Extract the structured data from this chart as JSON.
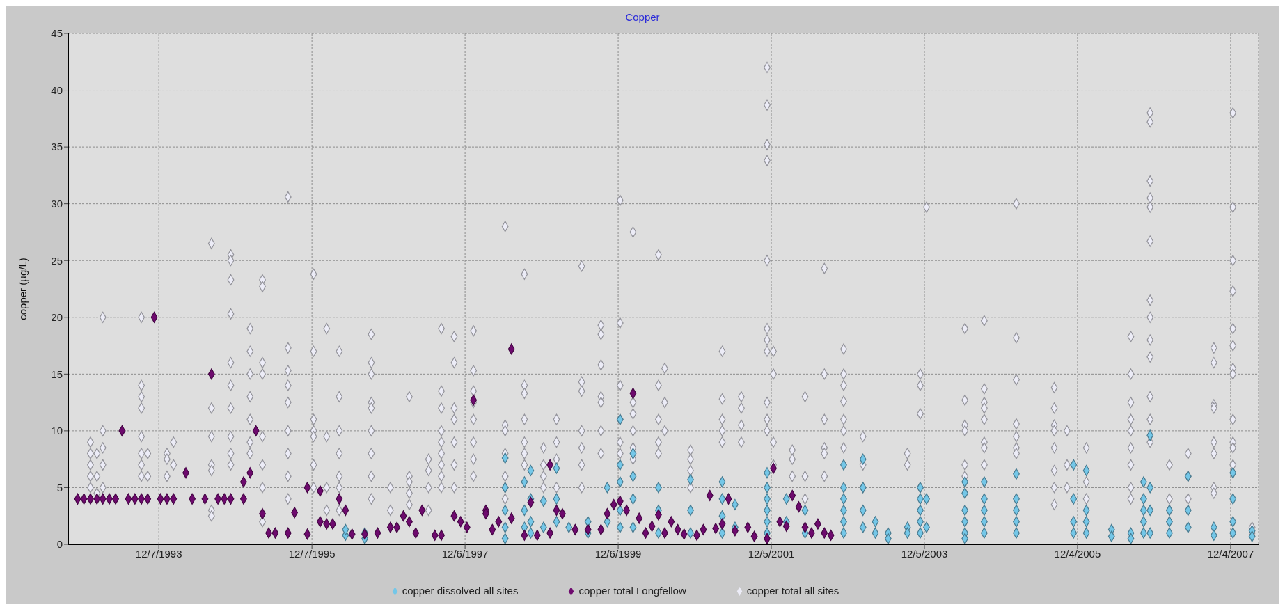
{
  "chart_data": {
    "type": "scatter",
    "title": "Copper",
    "ylabel": "copper (µg/L)",
    "marker": "diamond",
    "grid": true,
    "legend": "bottom",
    "xlim": [
      "1992-10-01",
      "2008-04-15"
    ],
    "xticks": [
      {
        "value": "1993-12-07",
        "label": "12/7/1993"
      },
      {
        "value": "1995-12-07",
        "label": "12/7/1995"
      },
      {
        "value": "1997-12-06",
        "label": "12/6/1997"
      },
      {
        "value": "1999-12-06",
        "label": "12/6/1999"
      },
      {
        "value": "2001-12-05",
        "label": "12/5/2001"
      },
      {
        "value": "2003-12-05",
        "label": "12/5/2003"
      },
      {
        "value": "2005-12-04",
        "label": "12/4/2005"
      },
      {
        "value": "2007-12-04",
        "label": "12/4/2007"
      }
    ],
    "ylim": [
      0,
      45
    ],
    "yticks": [
      0,
      5,
      10,
      15,
      20,
      25,
      30,
      35,
      40,
      45
    ],
    "series": [
      {
        "name": "copper total all sites",
        "color": "#ececf7",
        "x": [
          "1993-01",
          "1993-01",
          "1993-01",
          "1993-01",
          "1993-01",
          "1993-02",
          "1993-02",
          "1993-02",
          "1993-03",
          "1993-03",
          "1993-03",
          "1993-03",
          "1993-03",
          "1993-09",
          "1993-09",
          "1993-09",
          "1993-09",
          "1993-09",
          "1993-09",
          "1993-09",
          "1993-09",
          "1993-10",
          "1993-10",
          "1994-01",
          "1994-01",
          "1994-01",
          "1994-02",
          "1994-02",
          "1994-08",
          "1994-08",
          "1994-08",
          "1994-08",
          "1994-08",
          "1994-08",
          "1994-08",
          "1994-11",
          "1994-11",
          "1994-11",
          "1994-11",
          "1994-11",
          "1994-11",
          "1994-11",
          "1994-11",
          "1994-11",
          "1994-11",
          "1995-02",
          "1995-02",
          "1995-02",
          "1995-02",
          "1995-02",
          "1995-02",
          "1995-02",
          "1995-04",
          "1995-04",
          "1995-04",
          "1995-04",
          "1995-04",
          "1995-04",
          "1995-04",
          "1995-04",
          "1995-08",
          "1995-08",
          "1995-08",
          "1995-08",
          "1995-08",
          "1995-08",
          "1995-08",
          "1995-08",
          "1995-08",
          "1995-12",
          "1995-12",
          "1995-12",
          "1995-12",
          "1995-12",
          "1995-12",
          "1995-12",
          "1996-02",
          "1996-02",
          "1996-02",
          "1996-02",
          "1996-04",
          "1996-04",
          "1996-04",
          "1996-04",
          "1996-04",
          "1996-04",
          "1996-04",
          "1996-09",
          "1996-09",
          "1996-09",
          "1996-09",
          "1996-09",
          "1996-09",
          "1996-09",
          "1996-09",
          "1996-09",
          "1996-12",
          "1996-12",
          "1997-03",
          "1997-03",
          "1997-03",
          "1997-03",
          "1997-03",
          "1997-06",
          "1997-06",
          "1997-06",
          "1997-06",
          "1997-08",
          "1997-08",
          "1997-08",
          "1997-08",
          "1997-08",
          "1997-08",
          "1997-08",
          "1997-08",
          "1997-08",
          "1997-10",
          "1997-10",
          "1997-10",
          "1997-10",
          "1997-10",
          "1997-10",
          "1997-10",
          "1998-01",
          "1998-01",
          "1998-01",
          "1998-01",
          "1998-01",
          "1998-01",
          "1998-01",
          "1998-01",
          "1998-06",
          "1998-06",
          "1998-06",
          "1998-06",
          "1998-06",
          "1998-06",
          "1998-06",
          "1998-09",
          "1998-09",
          "1998-09",
          "1998-09",
          "1998-09",
          "1998-09",
          "1998-09",
          "1998-12",
          "1998-12",
          "1998-12",
          "1998-12",
          "1999-02",
          "1999-02",
          "1999-02",
          "1999-02",
          "1999-06",
          "1999-06",
          "1999-06",
          "1999-06",
          "1999-06",
          "1999-06",
          "1999-06",
          "1999-09",
          "1999-09",
          "1999-09",
          "1999-09",
          "1999-09",
          "1999-09",
          "1999-09",
          "1999-12",
          "1999-12",
          "1999-12",
          "1999-12",
          "1999-12",
          "1999-12",
          "2000-02",
          "2000-02",
          "2000-02",
          "2000-02",
          "2000-02",
          "2000-02",
          "2000-06",
          "2000-06",
          "2000-06",
          "2000-06",
          "2000-06",
          "2000-07",
          "2000-07",
          "2000-07",
          "2000-11",
          "2000-11",
          "2000-11",
          "2000-11",
          "2001-04",
          "2001-04",
          "2001-04",
          "2001-04",
          "2001-04",
          "2001-07",
          "2001-07",
          "2001-07",
          "2001-07",
          "2001-11",
          "2001-11",
          "2001-11",
          "2001-11",
          "2001-11",
          "2001-11",
          "2001-11",
          "2001-11",
          "2001-11",
          "2001-11",
          "2001-11",
          "2001-12",
          "2001-12",
          "2001-12",
          "2001-12",
          "2002-03",
          "2002-03",
          "2002-03",
          "2002-05",
          "2002-05",
          "2002-05",
          "2002-08",
          "2002-08",
          "2002-08",
          "2002-08",
          "2002-08",
          "2002-08",
          "2002-11",
          "2002-11",
          "2002-11",
          "2002-11",
          "2002-11",
          "2002-11",
          "2002-11",
          "2003-02",
          "2003-02",
          "2003-02",
          "2003-09",
          "2003-09",
          "2003-11",
          "2003-11",
          "2003-11",
          "2003-11",
          "2003-12",
          "2004-06",
          "2004-06",
          "2004-06",
          "2004-06",
          "2004-06",
          "2004-06",
          "2004-09",
          "2004-09",
          "2004-09",
          "2004-09",
          "2004-09",
          "2004-09",
          "2004-09",
          "2004-09",
          "2005-02",
          "2005-02",
          "2005-02",
          "2005-02",
          "2005-02",
          "2005-02",
          "2005-02",
          "2005-08",
          "2005-08",
          "2005-08",
          "2005-08",
          "2005-08",
          "2005-08",
          "2005-08",
          "2005-08",
          "2005-10",
          "2005-10",
          "2005-10",
          "2006-01",
          "2006-01",
          "2006-01",
          "2006-08",
          "2006-08",
          "2006-08",
          "2006-08",
          "2006-08",
          "2006-08",
          "2006-08",
          "2006-08",
          "2006-08",
          "2006-11",
          "2006-11",
          "2006-11",
          "2006-11",
          "2006-11",
          "2006-11",
          "2006-11",
          "2006-11",
          "2006-11",
          "2006-11",
          "2006-11",
          "2006-11",
          "2006-11",
          "2007-02",
          "2007-02",
          "2007-02",
          "2007-05",
          "2007-05",
          "2007-05",
          "2007-09",
          "2007-09",
          "2007-09",
          "2007-09",
          "2007-09",
          "2007-09",
          "2007-09",
          "2007-09",
          "2007-12",
          "2007-12",
          "2007-12",
          "2007-12",
          "2007-12",
          "2007-12",
          "2007-12",
          "2007-12",
          "2007-12",
          "2007-12",
          "2007-12",
          "2007-12",
          "2008-03",
          "2008-03"
        ],
        "values": [
          9,
          8,
          7,
          6,
          5,
          8,
          6,
          4.5,
          20,
          10,
          8.5,
          7,
          5,
          20,
          14,
          13,
          12,
          9.5,
          8,
          7,
          6,
          8,
          6,
          8,
          7.5,
          6,
          9,
          7,
          26.5,
          12,
          9.5,
          7,
          6.5,
          3,
          2.5,
          25.5,
          25,
          23.3,
          20.3,
          16,
          14,
          12,
          9.5,
          8,
          7,
          19,
          17,
          15,
          13,
          11,
          9,
          8,
          23.3,
          22.7,
          16,
          15,
          9.5,
          7,
          5,
          2,
          30.6,
          17.3,
          15.3,
          14,
          12.5,
          10,
          8,
          6,
          4,
          23.8,
          17,
          11,
          10,
          9.5,
          7,
          5,
          19,
          9.5,
          5,
          3,
          17,
          13,
          10,
          8,
          6,
          5,
          3,
          18.5,
          16,
          15,
          12.5,
          12,
          10,
          8,
          6,
          4,
          5,
          3,
          13,
          6,
          5.5,
          4.5,
          3.5,
          7.5,
          6.5,
          5,
          3,
          19,
          13.5,
          12,
          10,
          9,
          8,
          7,
          6,
          5,
          18.3,
          16,
          12,
          11,
          9,
          7,
          5,
          18.8,
          15.3,
          13.5,
          12.5,
          11,
          9,
          7.5,
          6,
          28,
          10.5,
          10,
          8,
          6,
          5,
          4,
          23.8,
          14,
          13.3,
          11,
          9,
          8,
          7,
          8.5,
          7,
          6,
          5,
          11,
          9,
          7.5,
          5,
          24.5,
          14.3,
          13.5,
          10,
          8.5,
          7,
          5,
          19.3,
          18.5,
          15.8,
          13,
          12.5,
          10,
          8,
          30.3,
          19.5,
          14,
          11,
          9,
          8,
          27.5,
          12.5,
          11.5,
          10,
          8.5,
          7.5,
          25.5,
          14,
          11,
          9,
          8,
          15.5,
          12.5,
          10,
          8.3,
          7.5,
          6.5,
          5,
          17,
          12.8,
          11,
          10,
          9,
          13,
          12,
          10.5,
          9,
          42,
          38.7,
          35.2,
          33.8,
          25,
          19,
          18,
          17,
          12.5,
          11,
          10,
          17,
          15,
          9,
          7,
          8.3,
          7.5,
          6,
          13,
          6,
          4,
          24.3,
          15,
          11,
          8.5,
          8,
          6,
          17.2,
          15,
          14,
          12.6,
          11,
          10,
          8.5,
          9.5,
          7,
          5,
          8,
          7,
          15,
          14,
          11.5,
          5,
          29.7,
          19,
          12.7,
          10.5,
          10,
          7,
          6,
          19.7,
          13.7,
          12.5,
          12,
          11,
          9,
          8.5,
          7,
          30,
          18.2,
          14.5,
          10.6,
          9.5,
          8.5,
          8,
          13.8,
          12,
          10.5,
          10,
          8.5,
          6.5,
          5,
          3.5,
          10,
          7,
          5,
          8.5,
          5.5,
          4,
          18.3,
          15,
          12.5,
          11,
          10,
          8.5,
          7,
          5,
          4,
          38,
          37.2,
          32,
          30.5,
          29.7,
          26.7,
          21.5,
          20,
          18,
          16.5,
          13,
          11,
          9,
          7,
          4,
          3,
          8,
          6,
          4,
          17.3,
          16,
          12.3,
          12,
          9,
          8,
          5,
          4.5,
          38,
          29.7,
          25,
          22.3,
          19,
          17.5,
          15.5,
          15,
          11,
          9,
          8.5,
          7,
          1.5,
          1
        ]
      },
      {
        "name": "copper dissolved all sites",
        "color": "#74c7e8",
        "x": [
          "1996-05",
          "1996-05",
          "1996-08",
          "1996-08",
          "1998-06",
          "1998-06",
          "1998-06",
          "1998-06",
          "1998-06",
          "1998-09",
          "1998-09",
          "1998-09",
          "1998-10",
          "1998-10",
          "1998-10",
          "1998-10",
          "1998-12",
          "1998-12",
          "1999-02",
          "1999-02",
          "1999-02",
          "1999-04",
          "1999-07",
          "1999-07",
          "1999-10",
          "1999-10",
          "1999-12",
          "1999-12",
          "1999-12",
          "1999-12",
          "1999-12",
          "2000-02",
          "2000-02",
          "2000-02",
          "2000-02",
          "2000-06",
          "2000-06",
          "2000-06",
          "2000-11",
          "2000-11",
          "2000-11",
          "2001-04",
          "2001-04",
          "2001-04",
          "2001-04",
          "2001-06",
          "2001-06",
          "2001-11",
          "2001-11",
          "2001-11",
          "2001-11",
          "2001-11",
          "2001-11",
          "2002-02",
          "2002-02",
          "2002-05",
          "2002-05",
          "2002-11",
          "2002-11",
          "2002-11",
          "2002-11",
          "2002-11",
          "2002-11",
          "2003-02",
          "2003-02",
          "2003-02",
          "2003-02",
          "2003-04",
          "2003-04",
          "2003-06",
          "2003-06",
          "2003-09",
          "2003-09",
          "2003-11",
          "2003-11",
          "2003-11",
          "2003-11",
          "2003-11",
          "2003-12",
          "2003-12",
          "2004-06",
          "2004-06",
          "2004-06",
          "2004-06",
          "2004-06",
          "2004-06",
          "2004-09",
          "2004-09",
          "2004-09",
          "2004-09",
          "2004-09",
          "2005-02",
          "2005-02",
          "2005-02",
          "2005-02",
          "2005-02",
          "2005-11",
          "2005-11",
          "2005-11",
          "2005-11",
          "2006-01",
          "2006-01",
          "2006-01",
          "2006-01",
          "2006-05",
          "2006-05",
          "2006-08",
          "2006-08",
          "2006-10",
          "2006-10",
          "2006-10",
          "2006-10",
          "2006-10",
          "2006-11",
          "2006-11",
          "2006-11",
          "2006-11",
          "2007-02",
          "2007-02",
          "2007-02",
          "2007-05",
          "2007-05",
          "2007-05",
          "2007-09",
          "2007-09",
          "2007-12",
          "2007-12",
          "2007-12",
          "2007-12",
          "2008-03",
          "2008-03"
        ],
        "values": [
          0.8,
          1.3,
          0.5,
          1,
          7.6,
          5,
          3,
          1.5,
          0.5,
          5.5,
          3,
          1.5,
          6.5,
          4,
          2,
          1,
          3.8,
          1.5,
          6.7,
          4,
          2,
          1.5,
          2,
          1,
          5,
          2,
          11,
          7,
          5.5,
          3,
          1.5,
          8,
          6,
          4,
          1.5,
          5,
          3,
          1,
          5.7,
          3,
          1,
          5.5,
          4,
          2.5,
          1,
          3.5,
          1.5,
          6.3,
          5,
          4,
          3,
          2,
          1,
          4,
          2,
          3,
          1,
          7,
          5,
          4,
          3,
          2,
          1,
          7.5,
          5,
          3,
          1.5,
          2,
          1,
          1,
          0.5,
          1.5,
          1,
          5,
          4,
          3,
          2,
          1,
          4,
          1.5,
          5.5,
          4.5,
          3,
          2,
          1,
          0.5,
          5.5,
          4,
          3,
          2,
          1,
          6.2,
          4,
          3,
          2,
          1,
          7,
          4,
          2,
          1,
          6.5,
          3,
          2,
          1,
          1.3,
          0.7,
          1,
          0.5,
          5.5,
          4,
          3,
          2,
          1,
          9.6,
          5,
          3,
          1,
          3,
          2,
          1,
          6,
          3,
          1.5,
          1.5,
          0.8,
          6.3,
          4,
          2,
          1,
          1.2,
          0.7
        ]
      },
      {
        "name": "copper total Longfellow",
        "color": "#6e0a6e",
        "x": [
          "1992-11",
          "1992-12",
          "1993-01",
          "1993-02",
          "1993-03",
          "1993-04",
          "1993-05",
          "1993-06",
          "1993-07",
          "1993-08",
          "1993-09",
          "1993-10",
          "1993-11",
          "1993-12",
          "1994-01",
          "1994-02",
          "1994-04",
          "1994-05",
          "1994-07",
          "1994-08",
          "1994-09",
          "1994-10",
          "1994-11",
          "1995-01",
          "1995-01",
          "1995-02",
          "1995-03",
          "1995-04",
          "1995-05",
          "1995-06",
          "1995-08",
          "1995-09",
          "1995-11",
          "1995-11",
          "1996-01",
          "1996-01",
          "1996-02",
          "1996-03",
          "1996-04",
          "1996-05",
          "1996-06",
          "1996-08",
          "1996-10",
          "1996-12",
          "1997-01",
          "1997-02",
          "1997-03",
          "1997-04",
          "1997-05",
          "1997-07",
          "1997-08",
          "1997-10",
          "1997-11",
          "1997-12",
          "1998-01",
          "1998-03",
          "1998-03",
          "1998-04",
          "1998-05",
          "1998-07",
          "1998-07",
          "1998-09",
          "1998-10",
          "1998-11",
          "1999-01",
          "1999-01",
          "1999-02",
          "1999-03",
          "1999-05",
          "1999-07",
          "1999-09",
          "1999-10",
          "1999-11",
          "1999-12",
          "2000-01",
          "2000-02",
          "2000-03",
          "2000-04",
          "2000-05",
          "2000-06",
          "2000-07",
          "2000-08",
          "2000-09",
          "2000-10",
          "2000-12",
          "2001-01",
          "2001-02",
          "2001-03",
          "2001-04",
          "2001-05",
          "2001-06",
          "2001-08",
          "2001-09",
          "2001-11",
          "2001-12",
          "2002-01",
          "2002-02",
          "2002-03",
          "2002-04",
          "2002-05",
          "2002-06",
          "2002-07",
          "2002-08",
          "2002-09"
        ],
        "values": [
          4,
          4,
          4,
          4,
          4,
          4,
          4,
          10,
          4,
          4,
          4,
          4,
          20,
          4,
          4,
          4,
          6.3,
          4,
          4,
          15,
          4,
          4,
          4,
          4,
          5.5,
          6.3,
          10,
          2.7,
          1,
          1,
          1,
          2.8,
          0.9,
          5,
          4.7,
          2,
          1.8,
          1.8,
          4,
          3,
          0.9,
          0.9,
          1,
          1.5,
          1.5,
          2.5,
          2,
          1,
          3,
          0.8,
          0.8,
          2.5,
          2,
          1.5,
          12.7,
          3,
          2.7,
          1.3,
          2,
          17.2,
          2.3,
          0.8,
          3.7,
          0.8,
          7,
          1,
          3,
          2.7,
          1.3,
          1.3,
          1.3,
          2.7,
          3.5,
          3.8,
          3,
          13.3,
          2.3,
          1,
          1.6,
          2.6,
          1,
          2,
          1.3,
          0.9,
          0.8,
          1.3,
          4.3,
          1.4,
          1.8,
          4,
          1.2,
          1.5,
          0.7,
          0.5,
          6.7,
          2,
          1.6,
          4.3,
          3.3,
          1.5,
          1,
          1.8,
          1,
          0.8
        ]
      }
    ]
  }
}
